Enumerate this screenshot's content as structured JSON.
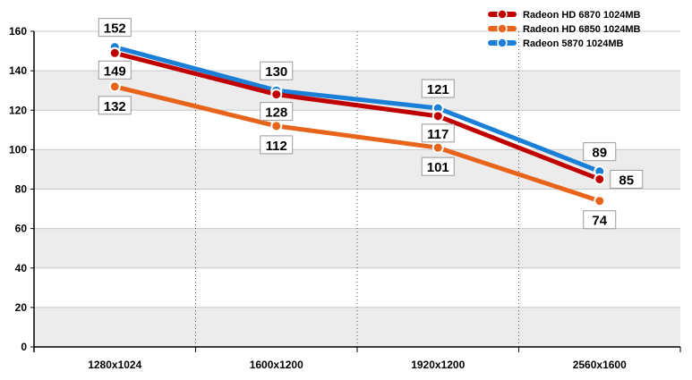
{
  "chart_data": {
    "type": "line",
    "title": "",
    "xlabel": "",
    "ylabel": "",
    "categories": [
      "1280x1024",
      "1600x1200",
      "1920x1200",
      "2560x1600"
    ],
    "ylim": [
      0,
      160
    ],
    "yticks": [
      0,
      20,
      40,
      60,
      80,
      100,
      120,
      140,
      160
    ],
    "grid": true,
    "legend_position": "top-right",
    "series": [
      {
        "name": "Radeon HD 6870 1024MB",
        "color": "#c00000",
        "values": [
          149,
          128,
          117,
          85
        ]
      },
      {
        "name": "Radeon HD 6850 1024MB",
        "color": "#e8641b",
        "values": [
          132,
          112,
          101,
          74
        ]
      },
      {
        "name": "Radeon 5870 1024MB",
        "color": "#1a7fd6",
        "values": [
          152,
          130,
          121,
          89
        ]
      }
    ]
  }
}
